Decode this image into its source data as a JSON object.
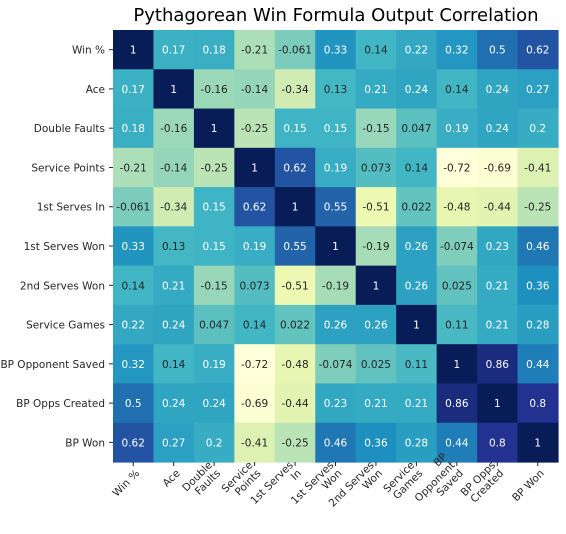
{
  "chart_data": {
    "type": "heatmap",
    "title": "Pythagorean Win Formula Output Correlation",
    "xlabel": "",
    "ylabel": "",
    "colormap": "YlGnBu",
    "vmin": -0.72,
    "vmax": 1,
    "grid": false,
    "legend": "none",
    "row_labels": [
      "Win %",
      "Ace",
      "Double Faults",
      "Service Points",
      "1st Serves In",
      "1st Serves Won",
      "2nd Serves Won",
      "Service Games",
      "BP Opponent Saved",
      "BP Opps Created",
      "BP Won"
    ],
    "col_labels": [
      [
        "Win %"
      ],
      [
        "Ace"
      ],
      [
        "Double",
        "Faults"
      ],
      [
        "Service",
        "Points"
      ],
      [
        "1st Serves",
        "In"
      ],
      [
        "1st Serves",
        "Won"
      ],
      [
        "2nd Serves",
        "Won"
      ],
      [
        "Service",
        "Games"
      ],
      [
        "BP",
        "Opponent",
        "Saved"
      ],
      [
        "BP Opps",
        "Created"
      ],
      [
        "BP Won"
      ]
    ],
    "values": [
      [
        "1",
        "0.17",
        "0.18",
        "-0.21",
        "-0.061",
        "0.33",
        "0.14",
        "0.22",
        "0.32",
        "0.5",
        "0.62"
      ],
      [
        "0.17",
        "1",
        "-0.16",
        "-0.14",
        "-0.34",
        "0.13",
        "0.21",
        "0.24",
        "0.14",
        "0.24",
        "0.27"
      ],
      [
        "0.18",
        "-0.16",
        "1",
        "-0.25",
        "0.15",
        "0.15",
        "-0.15",
        "0.047",
        "0.19",
        "0.24",
        "0.2"
      ],
      [
        "-0.21",
        "-0.14",
        "-0.25",
        "1",
        "0.62",
        "0.19",
        "0.073",
        "0.14",
        "-0.72",
        "-0.69",
        "-0.41"
      ],
      [
        "-0.061",
        "-0.34",
        "0.15",
        "0.62",
        "1",
        "0.55",
        "-0.51",
        "0.022",
        "-0.48",
        "-0.44",
        "-0.25"
      ],
      [
        "0.33",
        "0.13",
        "0.15",
        "0.19",
        "0.55",
        "1",
        "-0.19",
        "0.26",
        "-0.074",
        "0.23",
        "0.46"
      ],
      [
        "0.14",
        "0.21",
        "-0.15",
        "0.073",
        "-0.51",
        "-0.19",
        "1",
        "0.26",
        "0.025",
        "0.21",
        "0.36"
      ],
      [
        "0.22",
        "0.24",
        "0.047",
        "0.14",
        "0.022",
        "0.26",
        "0.26",
        "1",
        "0.11",
        "0.21",
        "0.28"
      ],
      [
        "0.32",
        "0.14",
        "0.19",
        "-0.72",
        "-0.48",
        "-0.074",
        "0.025",
        "0.11",
        "1",
        "0.86",
        "0.44"
      ],
      [
        "0.5",
        "0.24",
        "0.24",
        "-0.69",
        "-0.44",
        "0.23",
        "0.21",
        "0.21",
        "0.86",
        "1",
        "0.8"
      ],
      [
        "0.62",
        "0.27",
        "0.2",
        "-0.41",
        "-0.25",
        "0.46",
        "0.36",
        "0.28",
        "0.44",
        "0.8",
        "1"
      ]
    ]
  }
}
